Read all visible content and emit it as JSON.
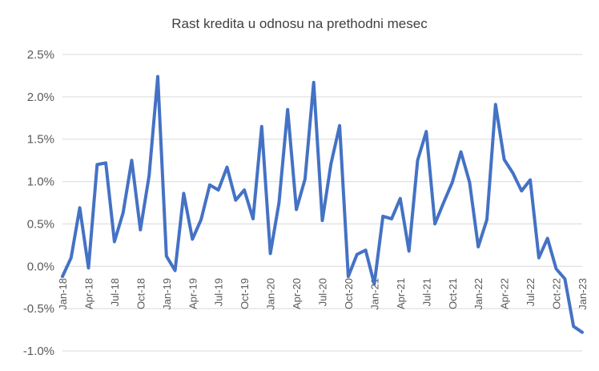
{
  "chart_data": {
    "type": "line",
    "title": "Rast kredita u odnosu na prethodni mesec",
    "xlabel": "",
    "ylabel": "",
    "ylim": [
      -1.0,
      2.5
    ],
    "yticks": [
      2.5,
      2.0,
      1.5,
      1.0,
      0.5,
      0.0,
      -0.5,
      -1.0
    ],
    "ytick_labels": [
      "2.5%",
      "2.0%",
      "1.5%",
      "1.0%",
      "0.5%",
      "0.0%",
      "-0.5%",
      "-1.0%"
    ],
    "grid": true,
    "legend": "none",
    "line_color": "#4472C4",
    "grid_color": "#D9D9D9",
    "x_tick_every": 3,
    "x": [
      "Jan-18",
      "Feb-18",
      "Mar-18",
      "Apr-18",
      "May-18",
      "Jun-18",
      "Jul-18",
      "Aug-18",
      "Sep-18",
      "Oct-18",
      "Nov-18",
      "Dec-18",
      "Jan-19",
      "Feb-19",
      "Mar-19",
      "Apr-19",
      "May-19",
      "Jun-19",
      "Jul-19",
      "Aug-19",
      "Sep-19",
      "Oct-19",
      "Nov-19",
      "Dec-19",
      "Jan-20",
      "Feb-20",
      "Mar-20",
      "Apr-20",
      "May-20",
      "Jun-20",
      "Jul-20",
      "Aug-20",
      "Sep-20",
      "Oct-20",
      "Nov-20",
      "Dec-20",
      "Jan-21",
      "Feb-21",
      "Mar-21",
      "Apr-21",
      "May-21",
      "Jun-21",
      "Jul-21",
      "Aug-21",
      "Sep-21",
      "Oct-21",
      "Nov-21",
      "Dec-21",
      "Jan-22",
      "Feb-22",
      "Mar-22",
      "Apr-22",
      "May-22",
      "Jun-22",
      "Jul-22",
      "Aug-22",
      "Sep-22",
      "Oct-22",
      "Nov-22",
      "Dec-22",
      "Jan-23"
    ],
    "series": [
      {
        "values": [
          -0.12,
          0.1,
          0.69,
          -0.02,
          1.2,
          1.22,
          0.29,
          0.63,
          1.25,
          0.43,
          1.07,
          2.24,
          0.12,
          -0.05,
          0.86,
          0.32,
          0.55,
          0.96,
          0.9,
          1.17,
          0.78,
          0.9,
          0.56,
          1.65,
          0.15,
          0.75,
          1.85,
          0.67,
          1.03,
          2.17,
          0.54,
          1.21,
          1.66,
          -0.12,
          0.14,
          0.19,
          -0.21,
          0.59,
          0.56,
          0.8,
          0.18,
          1.25,
          1.59,
          0.5,
          0.75,
          0.99,
          1.35,
          0.99,
          0.23,
          0.55,
          1.91,
          1.26,
          1.1,
          0.89,
          1.02,
          0.1,
          0.33,
          -0.03,
          -0.15,
          -0.71,
          -0.78
        ]
      }
    ]
  }
}
